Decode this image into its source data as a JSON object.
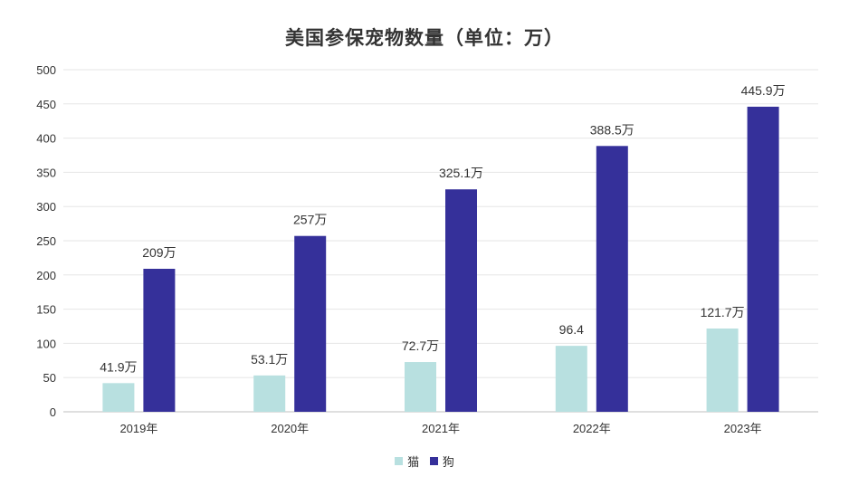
{
  "chart_data": {
    "type": "bar",
    "title": "美国参保宠物数量（单位：万）",
    "categories": [
      "2019年",
      "2020年",
      "2021年",
      "2022年",
      "2023年"
    ],
    "series": [
      {
        "name": "猫",
        "color": "#b8e0e0",
        "values": [
          41.9,
          53.1,
          72.7,
          96.4,
          121.7
        ],
        "labels": [
          "41.9万",
          "53.1万",
          "72.7万",
          "96.4",
          "121.7万"
        ]
      },
      {
        "name": "狗",
        "color": "#35309a",
        "values": [
          209,
          257,
          325.1,
          388.5,
          445.9
        ],
        "labels": [
          "209万",
          "257万",
          "325.1万",
          "388.5万",
          "445.9万"
        ]
      }
    ],
    "ylim": [
      0,
      500
    ],
    "yticks": [
      "0",
      "50",
      "100",
      "150",
      "200",
      "250",
      "300",
      "350",
      "400",
      "450",
      "500"
    ],
    "grid": true,
    "legend_position": "bottom"
  }
}
